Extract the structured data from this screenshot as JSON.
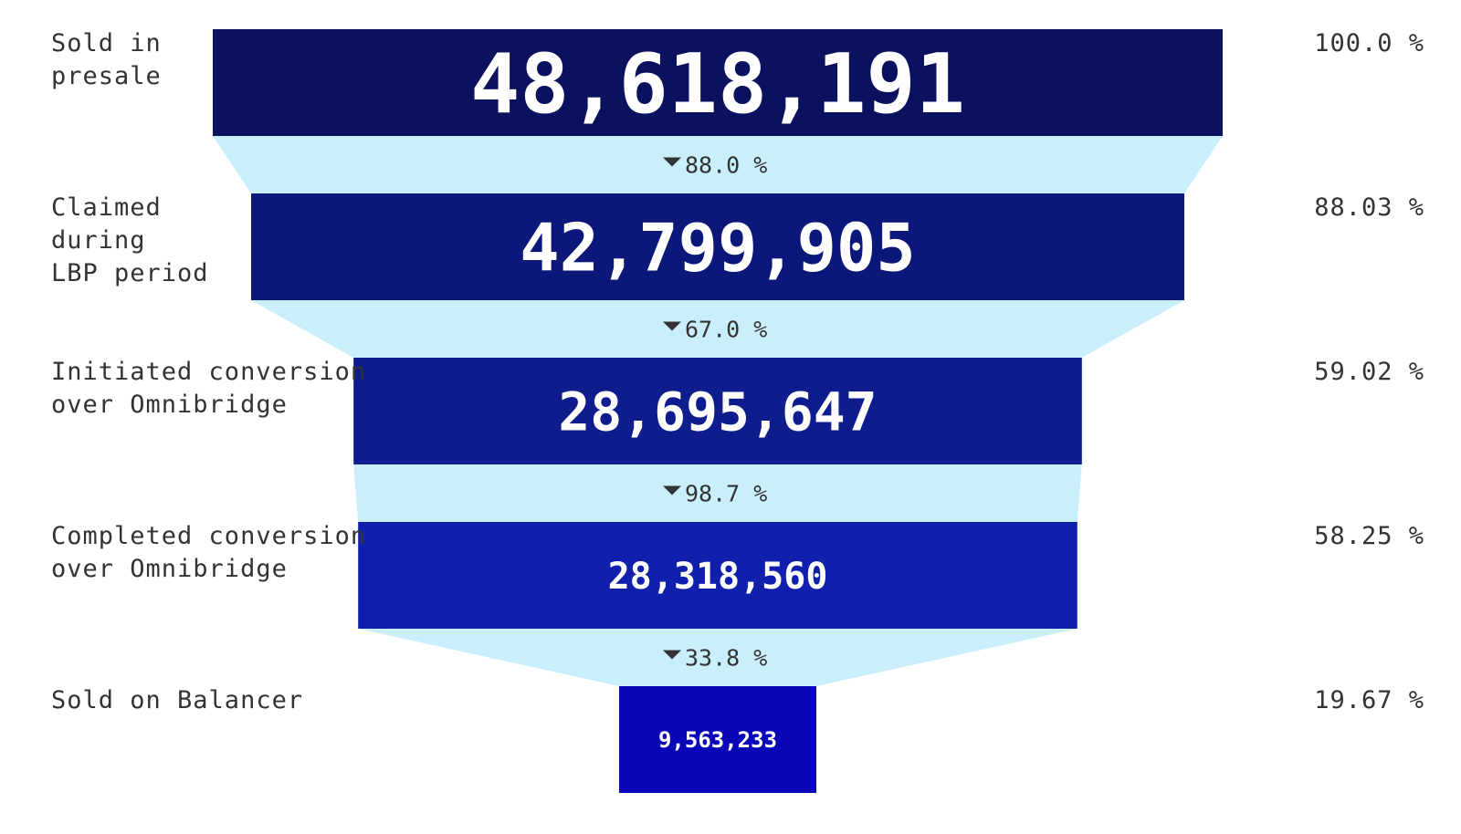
{
  "chart_data": {
    "type": "funnel",
    "stages": [
      {
        "label": "Sold in presale",
        "value": "48,618,191",
        "share": "100.0 %"
      },
      {
        "label": "Claimed during LBP period",
        "value": "42,799,905",
        "share": "88.03 %"
      },
      {
        "label": "Initiated conversion over Omnibridge",
        "value": "28,695,647",
        "share": "59.02 %"
      },
      {
        "label": "Completed conversion over Omnibridge",
        "value": "28,318,560",
        "share": "58.25 %"
      },
      {
        "label": "Sold on Balancer",
        "value": "9,563,233",
        "share": "19.67 %"
      }
    ],
    "values": [
      48618191,
      42799905,
      28695647,
      28318560,
      9563233
    ],
    "conversions": [
      "88.0 %",
      "67.0 %",
      "98.7 %",
      "33.8 %"
    ],
    "colors": {
      "bars": [
        "#0a115e",
        "#0c177a",
        "#0e1c8e",
        "#1020ad",
        "#0a07b8"
      ],
      "connector": "#c9eefc",
      "text": "#333333",
      "bar_text": "#ffffff"
    }
  }
}
